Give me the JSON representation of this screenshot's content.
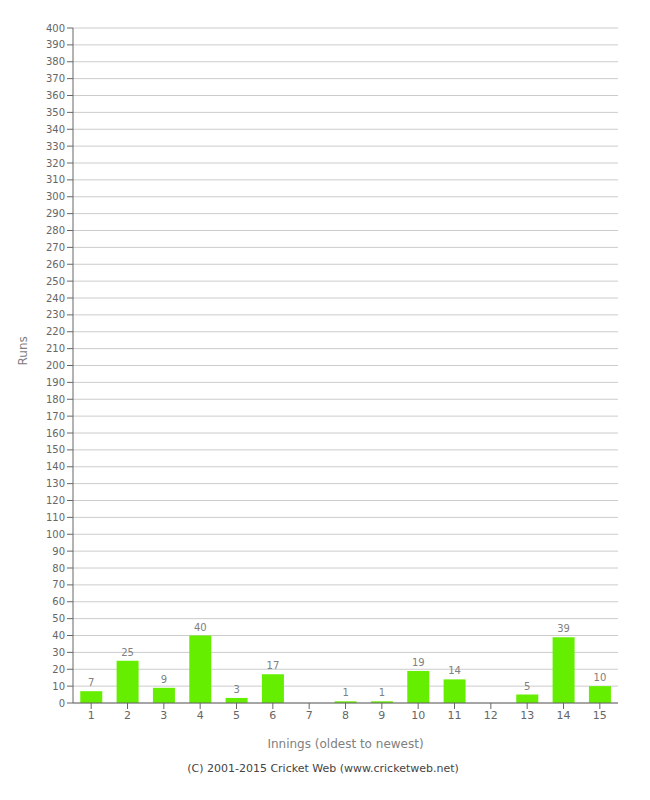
{
  "chart_data": {
    "type": "bar",
    "xlabel": "Innings (oldest to newest)",
    "ylabel": "Runs",
    "categories": [
      "1",
      "2",
      "3",
      "4",
      "5",
      "6",
      "7",
      "8",
      "9",
      "10",
      "11",
      "12",
      "13",
      "14",
      "15"
    ],
    "values": [
      7,
      25,
      9,
      40,
      3,
      17,
      0,
      1,
      1,
      19,
      14,
      0,
      5,
      39,
      10
    ],
    "color": "#66ee00",
    "ylim": [
      0,
      400
    ],
    "yticks": [
      0,
      10,
      20,
      30,
      40,
      50,
      60,
      70,
      80,
      90,
      100,
      110,
      120,
      130,
      140,
      150,
      160,
      170,
      180,
      190,
      200,
      210,
      220,
      230,
      240,
      250,
      260,
      270,
      280,
      290,
      300,
      310,
      320,
      330,
      340,
      350,
      360,
      370,
      380,
      390,
      400
    ],
    "grid": true,
    "data_labels": true,
    "annotations": [
      "(C) 2001-2015 Cricket Web (www.cricketweb.net)"
    ]
  }
}
